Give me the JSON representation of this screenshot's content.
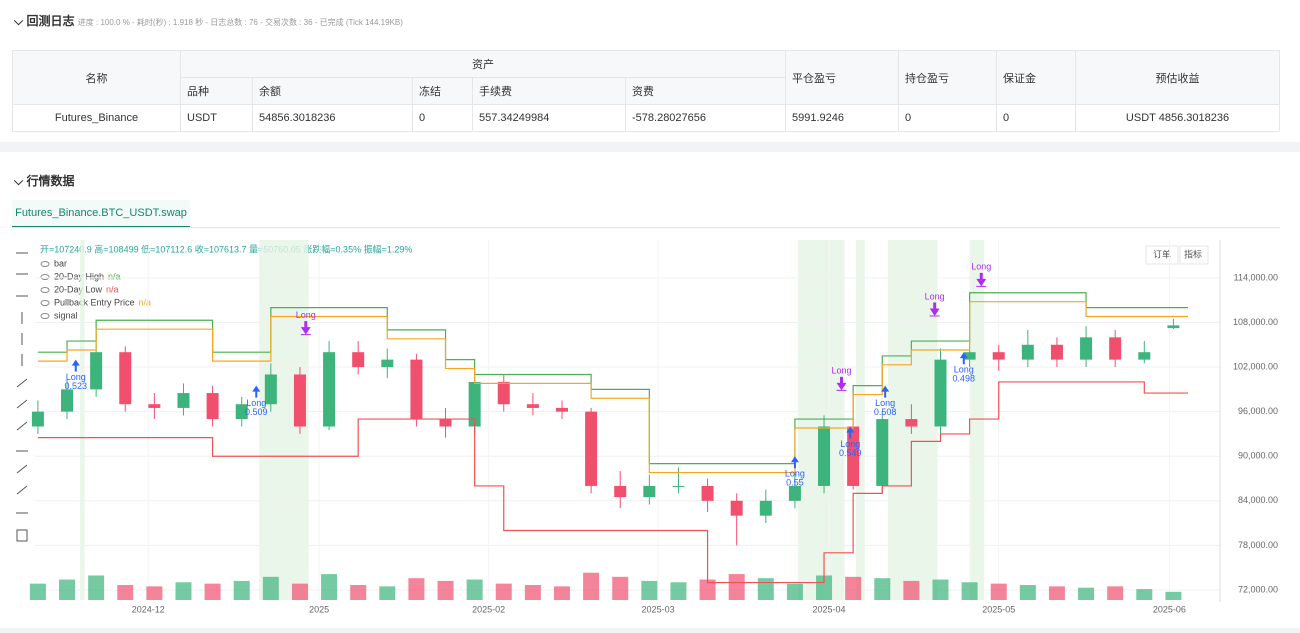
{
  "header": {
    "title": "回测日志",
    "stats": "进度 : 100.0 % - 耗时(秒) : 1.918 秒 - 日志总数 : 76 - 交易次数 : 36 - 已完成 (Tick 144.19KB)"
  },
  "table": {
    "head1": [
      "名称",
      "资产",
      "平仓盈亏",
      "持仓盈亏",
      "保证金",
      "预估收益"
    ],
    "head2": [
      "品种",
      "余额",
      "冻结",
      "手续费",
      "资费"
    ],
    "rows": [
      [
        "Futures_Binance",
        "USDT",
        "54856.3018236",
        "0",
        "557.34249984",
        "-578.28027656",
        "5991.9246",
        "0",
        "0",
        "USDT 4856.3018236"
      ]
    ]
  },
  "market": {
    "title": "行情数据",
    "tab": "Futures_Binance.BTC_USDT.swap",
    "info": "开=107240.9 高=108499 低=107112.6 收=107613.7 量=50760.05 涨跌幅=0.35% 振幅=1.29%",
    "buttons": [
      "订单",
      "指标"
    ],
    "bar_label": "bar",
    "signal_label": "signal"
  },
  "chart_data": {
    "type": "candlestick",
    "open": [
      94000,
      96000,
      99000,
      104000,
      97000,
      96500,
      98500,
      95000,
      97000,
      101000,
      94000,
      104000,
      102000,
      103000,
      95000,
      94000,
      100000,
      97000,
      96500,
      96000,
      86000,
      84500,
      86000,
      86000,
      84000,
      82000,
      84000,
      86000,
      94000,
      86000,
      95000,
      94000,
      103000,
      104000,
      103000,
      105000,
      103000,
      106000,
      103000,
      107240.9
    ],
    "high": [
      97500,
      100500,
      106500,
      104800,
      98500,
      99800,
      99500,
      98000,
      102500,
      102000,
      105500,
      105500,
      104500,
      103800,
      96500,
      101500,
      101000,
      98500,
      97500,
      96500,
      88000,
      87500,
      88500,
      87000,
      85000,
      85500,
      88000,
      95500,
      95000,
      96000,
      97000,
      104500,
      106000,
      105000,
      107000,
      106000,
      107500,
      107000,
      105500,
      108499
    ],
    "low": [
      93000,
      95000,
      98000,
      96000,
      95000,
      95500,
      94000,
      94000,
      96000,
      93000,
      93500,
      101000,
      100500,
      94000,
      92500,
      93000,
      96000,
      95500,
      95000,
      85000,
      83000,
      83500,
      85000,
      82500,
      78000,
      81000,
      83000,
      85000,
      85500,
      85000,
      93000,
      93000,
      102000,
      101500,
      102000,
      102000,
      102000,
      102000,
      102500,
      107112.6
    ],
    "close": [
      96000,
      99000,
      104000,
      97000,
      96500,
      98500,
      95000,
      97000,
      101000,
      94000,
      104000,
      102000,
      103000,
      95000,
      94000,
      100000,
      97000,
      96500,
      96000,
      86000,
      84500,
      86000,
      86000,
      84000,
      82000,
      84000,
      86000,
      94000,
      86000,
      95000,
      94000,
      103000,
      104000,
      103000,
      105000,
      103000,
      106000,
      103000,
      104000,
      107613.7
    ],
    "volume": [
      60,
      75,
      90,
      55,
      50,
      65,
      60,
      70,
      85,
      60,
      95,
      55,
      50,
      80,
      70,
      75,
      60,
      55,
      50,
      100,
      85,
      70,
      65,
      75,
      95,
      80,
      60,
      90,
      85,
      80,
      70,
      75,
      65,
      60,
      55,
      50,
      45,
      50,
      40,
      30
    ],
    "volume_lim": [
      0,
      110
    ],
    "up_color": "#3cb47c",
    "down_color": "#f0506e",
    "series": [
      {
        "name": "20-Day High",
        "color": "#4caf50",
        "last": "n/a",
        "values": [
          104000,
          105500,
          108300,
          108300,
          108300,
          108300,
          104000,
          104000,
          110000,
          110000,
          110000,
          110000,
          107000,
          107000,
          103000,
          101000,
          101000,
          101000,
          101000,
          99000,
          99000,
          89000,
          89000,
          89000,
          89000,
          89000,
          95000,
          95000,
          99500,
          103500,
          105500,
          105500,
          112000,
          112000,
          112000,
          112000,
          110000,
          110000,
          110000,
          110000
        ]
      },
      {
        "name": "20-Day Low",
        "color": "#ef5350",
        "last": "n/a",
        "values": [
          92500,
          92500,
          92500,
          92500,
          92500,
          92500,
          90000,
          90000,
          90000,
          90000,
          90000,
          95000,
          95000,
          95000,
          95000,
          86000,
          80000,
          80000,
          80000,
          80000,
          80000,
          80000,
          80000,
          73000,
          73000,
          73000,
          73000,
          77000,
          85000,
          86000,
          92000,
          93000,
          95000,
          100000,
          100000,
          100000,
          100000,
          100000,
          98500,
          98500
        ]
      },
      {
        "name": "Pullback Entry Price",
        "color": "#f5a623",
        "last": "n/a",
        "values": [
          102800,
          104300,
          107100,
          107100,
          107100,
          107100,
          102800,
          102800,
          108800,
          108800,
          108800,
          108800,
          105800,
          105800,
          101800,
          99800,
          99800,
          99800,
          99800,
          97800,
          97800,
          87800,
          87800,
          87800,
          87800,
          87800,
          93800,
          93800,
          98300,
          102300,
          104300,
          104300,
          110800,
          110800,
          110800,
          110800,
          108800,
          108800,
          108800,
          108800
        ]
      }
    ],
    "signal_zones": [
      [
        1.45,
        1.6
      ],
      [
        7.6,
        9.3
      ],
      [
        26.1,
        27.7
      ],
      [
        28.1,
        28.4
      ],
      [
        29.2,
        30.9
      ],
      [
        32,
        32.5
      ]
    ],
    "entries": [
      {
        "x": 1.3,
        "price": 103000,
        "label": "Long",
        "qty": 0.523
      },
      {
        "x": 7.5,
        "price": 99500,
        "label": "Long",
        "qty": 0.509
      },
      {
        "x": 26,
        "price": 90000,
        "label": "Long",
        "qty": 0.55
      },
      {
        "x": 27.9,
        "price": 94000,
        "label": "Long",
        "qty": 0.549
      },
      {
        "x": 29.1,
        "price": 99500,
        "label": "Long",
        "qty": 0.508
      },
      {
        "x": 31.8,
        "price": 104000,
        "label": "Long",
        "qty": 0.498
      }
    ],
    "exits": [
      {
        "x": 9.2,
        "price": 106500,
        "label": "Long"
      },
      {
        "x": 27.6,
        "price": 99000,
        "label": "Long"
      },
      {
        "x": 30.8,
        "price": 109000,
        "label": "Long"
      },
      {
        "x": 32.4,
        "price": 113000,
        "label": "Long"
      }
    ],
    "ylim": [
      70650,
      119100
    ],
    "yticks": [
      {
        "value": 72000,
        "label": "72,000.00"
      },
      {
        "value": 78000,
        "label": "78,000.00"
      },
      {
        "value": 84000,
        "label": "84,000.00"
      },
      {
        "value": 90000,
        "label": "90,000.00"
      },
      {
        "value": 96000,
        "label": "96,000.00"
      },
      {
        "value": 102000,
        "label": "102,000.00"
      },
      {
        "value": 108000,
        "label": "108,000.00"
      },
      {
        "value": 114000,
        "label": "114,000.00"
      }
    ],
    "xlim": [
      -0.1,
      40.6
    ],
    "xticks": [
      {
        "value": 3.79,
        "label": "2024-12"
      },
      {
        "value": 9.66,
        "label": "2025"
      },
      {
        "value": 15.48,
        "label": "2025-02"
      },
      {
        "value": 21.3,
        "label": "2025-03"
      },
      {
        "value": 27.17,
        "label": "2025-04"
      },
      {
        "value": 33,
        "label": "2025-05"
      },
      {
        "value": 38.86,
        "label": "2025-06"
      }
    ]
  }
}
